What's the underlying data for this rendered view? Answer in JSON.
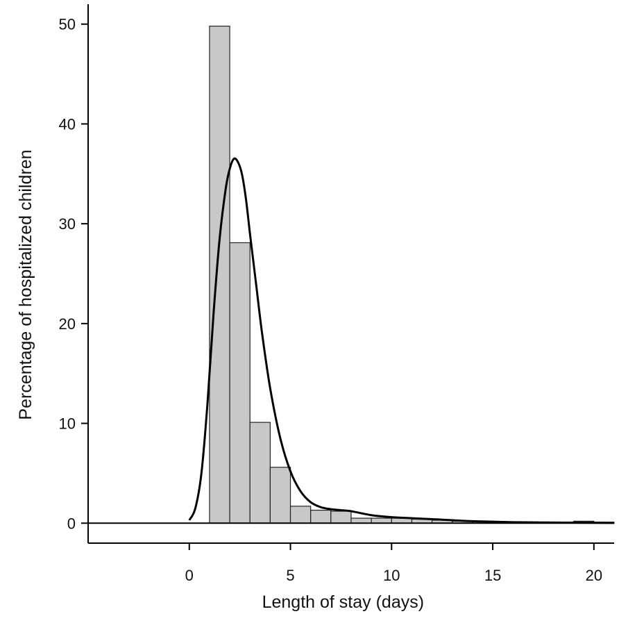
{
  "chart_data": {
    "type": "bar",
    "title": "",
    "xlabel": "Length of stay (days)",
    "ylabel": "Percentage of hospitalized children",
    "xlim": [
      -5,
      21
    ],
    "ylim": [
      -2,
      52
    ],
    "x_ticks": [
      0,
      5,
      10,
      15,
      20
    ],
    "y_ticks": [
      0,
      10,
      20,
      30,
      40,
      50
    ],
    "grid": false,
    "legend": "none",
    "bars": {
      "bin_width": 1,
      "bin_starts": [
        1,
        2,
        3,
        4,
        5,
        6,
        7,
        8,
        9,
        10,
        11,
        12,
        13,
        14,
        15,
        16,
        17,
        18,
        19,
        20
      ],
      "values": [
        49.8,
        28.1,
        10.1,
        5.6,
        1.7,
        1.3,
        1.2,
        0.5,
        0.5,
        0.5,
        0.4,
        0.3,
        0.2,
        0.2,
        0.1,
        0.1,
        0.1,
        0.1,
        0.2,
        0.1
      ],
      "fill_color": "#c8c8c8",
      "edge_color": "#222222"
    },
    "density_curve": {
      "x": [
        0,
        0.3,
        0.6,
        0.9,
        1.2,
        1.5,
        1.8,
        2.0,
        2.2,
        2.4,
        2.6,
        2.8,
        3.0,
        3.3,
        3.6,
        4.0,
        4.5,
        5.0,
        5.5,
        6.0,
        6.5,
        7.0,
        7.5,
        8.0,
        9.0,
        10.0,
        11.0,
        12.0,
        13.0,
        14.0,
        15.0,
        16.0,
        17.0,
        18.0,
        19.0,
        20.0,
        21.0
      ],
      "y": [
        0.3,
        1.5,
        5.0,
        12.0,
        21.0,
        28.5,
        33.5,
        35.5,
        36.5,
        36.2,
        35.0,
        32.5,
        29.0,
        24.0,
        19.0,
        13.5,
        8.5,
        5.2,
        3.2,
        2.1,
        1.6,
        1.4,
        1.3,
        1.2,
        0.8,
        0.6,
        0.5,
        0.4,
        0.3,
        0.2,
        0.15,
        0.1,
        0.08,
        0.06,
        0.05,
        0.04,
        0.03
      ],
      "color": "#000000"
    },
    "baseline": {
      "x_start": -5,
      "x_end": 21,
      "y": 0
    }
  }
}
